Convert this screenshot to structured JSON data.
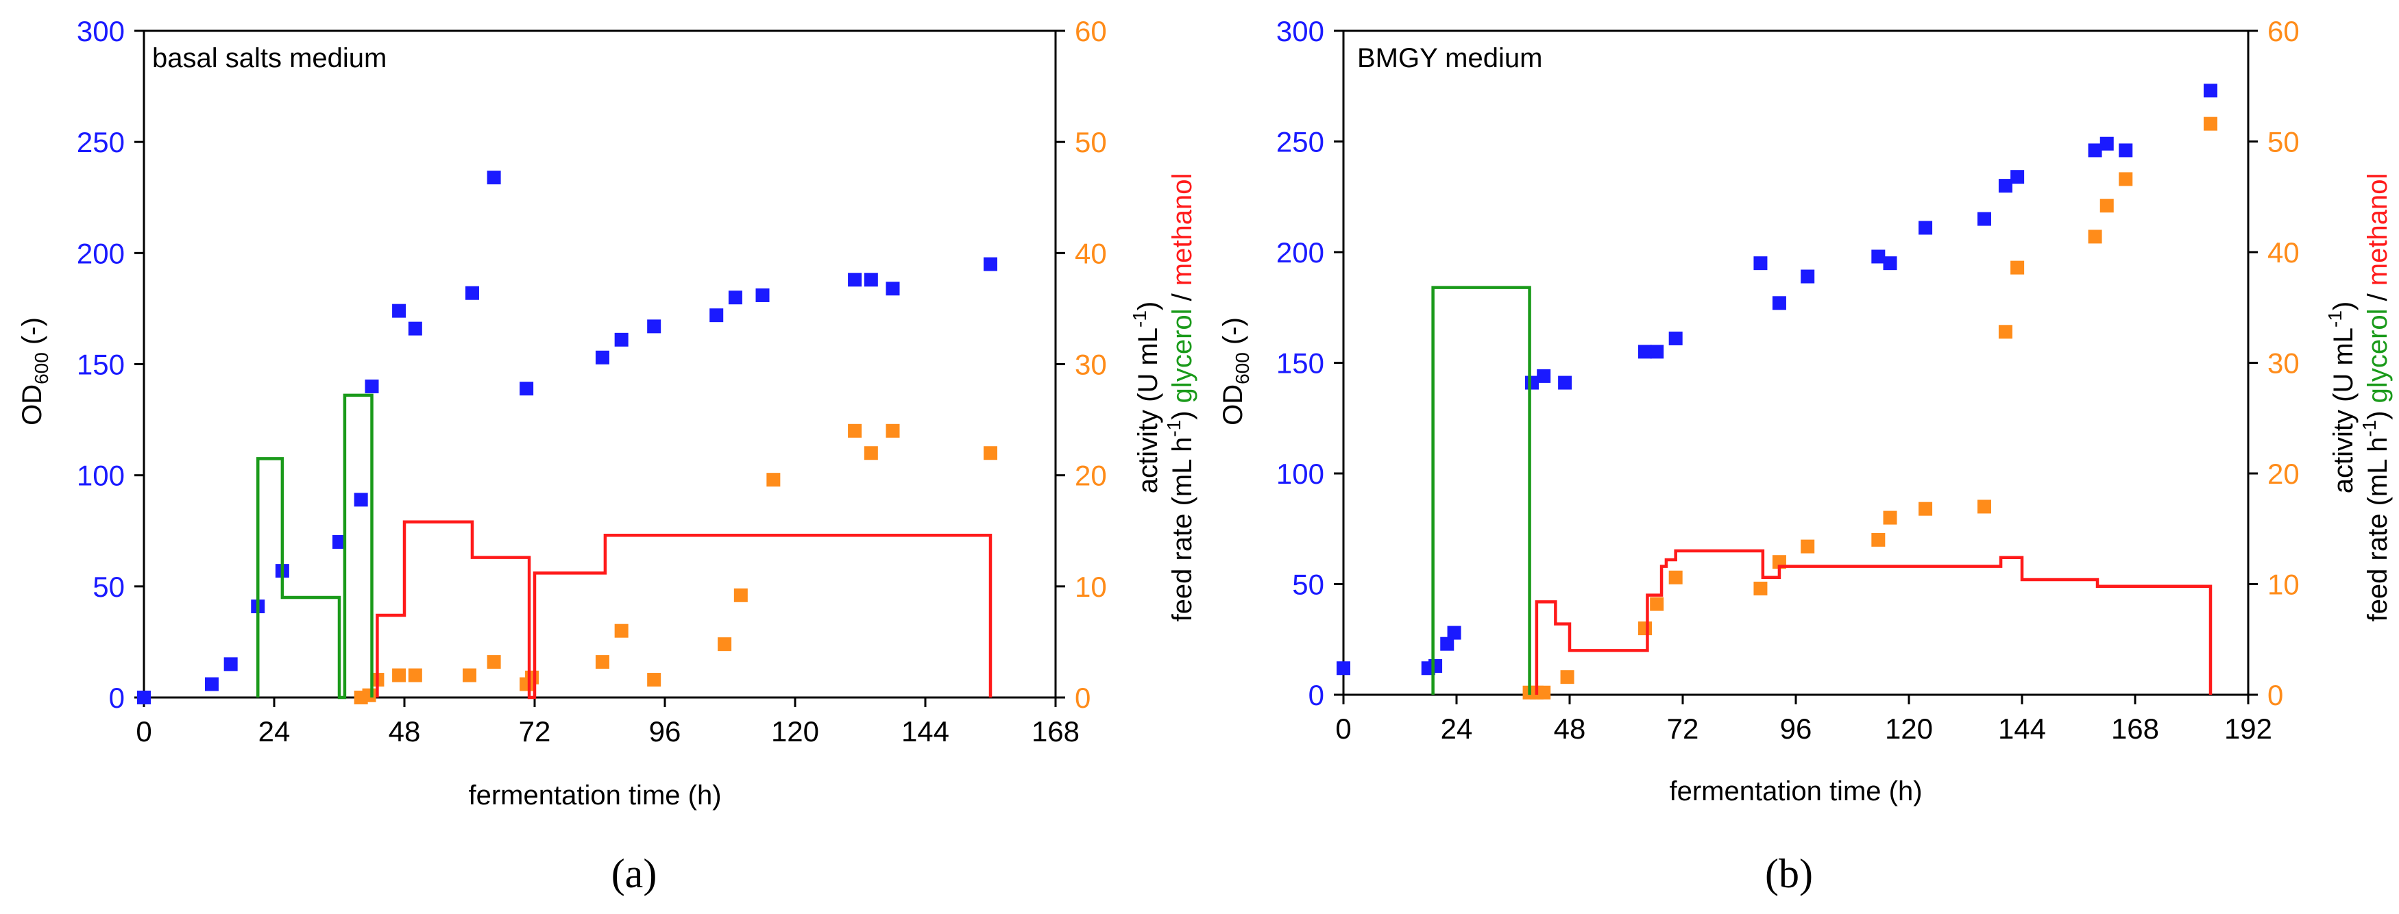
{
  "colors": {
    "od": "#1a1aff",
    "activity": "#ff8c1a",
    "glycerol": "#1a9a1a",
    "methanol": "#ff1a1a",
    "axis": "#000000"
  },
  "chart_data": [
    {
      "type": "scatter",
      "panel_label": "(a)",
      "title": "basal salts medium",
      "xlabel": "fermentation time  (h)",
      "ylabel_left": "OD600 (-)",
      "ylabel_right": {
        "activity": "activity (U mL",
        "feed": "feed rate (mL h",
        "glycerol": "glycerol",
        "slash": " / ",
        "methanol": "methanol"
      },
      "xlim": [
        0,
        168
      ],
      "xticks": [
        0,
        24,
        48,
        72,
        96,
        120,
        144,
        168
      ],
      "ylim_left": [
        0,
        300
      ],
      "yticks_left": [
        0,
        50,
        100,
        150,
        200,
        250,
        300
      ],
      "ylim_right": [
        0,
        60
      ],
      "yticks_right": [
        0,
        10,
        20,
        30,
        40,
        50,
        60
      ],
      "series": [
        {
          "name": "OD600",
          "axis": "left",
          "x": [
            0,
            12.5,
            16,
            21,
            25.5,
            36,
            40,
            42,
            47,
            50,
            60.5,
            64.5,
            70.5,
            84.5,
            88,
            94,
            105.5,
            109,
            114,
            131,
            134,
            138,
            156
          ],
          "y": [
            0,
            6,
            15,
            41,
            57,
            70,
            89,
            140,
            174,
            166,
            182,
            234,
            139,
            153,
            161,
            167,
            172,
            180,
            181,
            188,
            188,
            184,
            195
          ]
        },
        {
          "name": "activity",
          "axis": "right",
          "x": [
            40,
            41.5,
            43,
            47,
            50,
            60,
            64.5,
            70.5,
            71.5,
            84.5,
            88,
            94,
            107,
            110,
            116,
            131,
            134,
            138,
            156
          ],
          "y": [
            0,
            0.2,
            1.6,
            2,
            2,
            2,
            3.2,
            1.2,
            1.8,
            3.2,
            6,
            1.6,
            4.8,
            9.2,
            19.6,
            24,
            22,
            24,
            22
          ]
        },
        {
          "name": "glycerol",
          "axis": "right",
          "type": "line",
          "x": [
            21,
            21,
            25.5,
            25.5,
            36,
            36,
            37,
            37,
            42,
            42
          ],
          "y": [
            0,
            21.5,
            21.5,
            9,
            9,
            0,
            0,
            27.2,
            27.2,
            0
          ]
        },
        {
          "name": "methanol",
          "axis": "right",
          "type": "line",
          "x": [
            43,
            43,
            48,
            48,
            60.5,
            60.5,
            71,
            71,
            72,
            72,
            85,
            85,
            156,
            156
          ],
          "y": [
            0,
            7.4,
            7.4,
            15.8,
            15.8,
            12.6,
            12.6,
            0,
            0,
            11.2,
            11.2,
            14.6,
            14.6,
            0
          ]
        }
      ]
    },
    {
      "type": "scatter",
      "panel_label": "(b)",
      "title": "BMGY medium",
      "xlabel": "fermentation time  (h)",
      "ylabel_left": "OD600 (-)",
      "ylabel_right": {
        "activity": "activity (U mL",
        "feed": "feed rate (mL h",
        "glycerol": "glycerol",
        "slash": " / ",
        "methanol": "methanol"
      },
      "xlim": [
        0,
        192
      ],
      "xticks": [
        0,
        24,
        48,
        72,
        96,
        120,
        144,
        168,
        192
      ],
      "ylim_left": [
        0,
        300
      ],
      "yticks_left": [
        0,
        50,
        100,
        150,
        200,
        250,
        300
      ],
      "ylim_right": [
        0,
        60
      ],
      "yticks_right": [
        0,
        10,
        20,
        30,
        40,
        50,
        60
      ],
      "series": [
        {
          "name": "OD600",
          "axis": "left",
          "x": [
            0,
            18,
            19.5,
            22,
            23.5,
            40,
            42.5,
            47,
            64,
            66.5,
            70.5,
            88.5,
            92.5,
            98.5,
            113.5,
            116,
            123.5,
            136,
            140.5,
            143,
            159.5,
            162,
            166,
            184
          ],
          "y": [
            12,
            12,
            13,
            23,
            28,
            141,
            144,
            141,
            155,
            155,
            161,
            195,
            177,
            189,
            198,
            195,
            211,
            215,
            230,
            234,
            246,
            249,
            246,
            273
          ]
        },
        {
          "name": "activity",
          "axis": "right",
          "x": [
            39.5,
            41,
            42.5,
            47.5,
            64,
            66.5,
            70.5,
            88.5,
            92.5,
            98.5,
            113.5,
            116,
            123.5,
            136,
            140.5,
            143,
            159.5,
            162,
            166,
            184
          ],
          "y": [
            0.2,
            0.2,
            0.2,
            1.6,
            6,
            8.2,
            10.6,
            9.6,
            12,
            13.4,
            14,
            16,
            16.8,
            17,
            32.8,
            38.6,
            41.4,
            44.2,
            46.6,
            51.6
          ]
        },
        {
          "name": "glycerol",
          "axis": "right",
          "type": "line",
          "x": [
            19,
            19,
            39.5,
            39.5
          ],
          "y": [
            0,
            36.8,
            36.8,
            0
          ]
        },
        {
          "name": "methanol",
          "axis": "right",
          "type": "line",
          "x": [
            41,
            41,
            45,
            45,
            48,
            48,
            64.5,
            64.5,
            67.5,
            67.5,
            68.5,
            68.5,
            70.5,
            70.5,
            89,
            89,
            92.5,
            92.5,
            139.5,
            139.5,
            144,
            144,
            160,
            160,
            184,
            184
          ],
          "y": [
            0,
            8.4,
            8.4,
            6.4,
            6.4,
            4,
            4,
            9,
            9,
            11.6,
            11.6,
            12.2,
            12.2,
            13,
            13,
            10.6,
            10.6,
            11.6,
            11.6,
            12.4,
            12.4,
            10.4,
            10.4,
            9.8,
            9.8,
            0
          ]
        }
      ]
    }
  ]
}
